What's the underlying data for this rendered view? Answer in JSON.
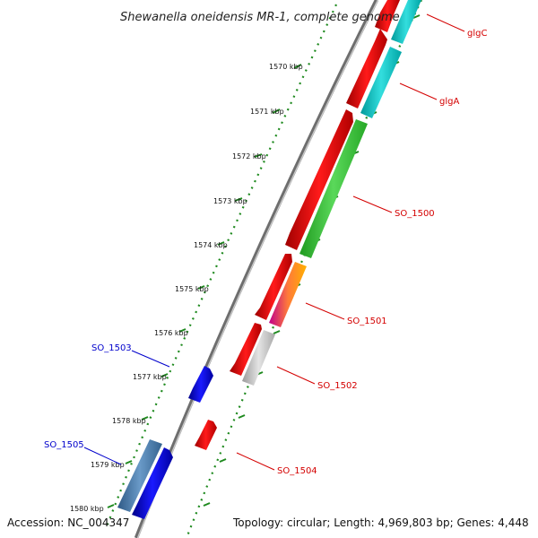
{
  "title": "Shewanella oneidensis MR-1, complete genome",
  "accession": "Accession: NC_004347",
  "topology": "Topology: circular; Length: 4,969,803 bp; Genes: 4,448",
  "colors": {
    "backbone": "#8a8a8a",
    "tick_mark": "#1f8a1f",
    "forward_label": "#d40000",
    "reverse_label": "#0000cc"
  },
  "ticks": [
    "1570 kbp",
    "1571 kbp",
    "1572 kbp",
    "1573 kbp",
    "1574 kbp",
    "1575 kbp",
    "1576 kbp",
    "1577 kbp",
    "1578 kbp",
    "1579 kbp",
    "1580 kbp"
  ],
  "genes": [
    {
      "name": "glgC",
      "strand": "forward",
      "color": "red"
    },
    {
      "name": "glgA",
      "strand": "forward",
      "color": "red"
    },
    {
      "name": "SO_1500",
      "strand": "forward",
      "color": "red"
    },
    {
      "name": "SO_1501",
      "strand": "forward",
      "color": "red"
    },
    {
      "name": "SO_1502",
      "strand": "forward",
      "color": "red"
    },
    {
      "name": "SO_1503",
      "strand": "reverse",
      "color": "blue"
    },
    {
      "name": "SO_1504",
      "strand": "forward",
      "color": "red"
    },
    {
      "name": "SO_1505",
      "strand": "reverse",
      "color": "blue"
    }
  ],
  "features": [
    {
      "gene": "glgC",
      "type": "cog",
      "color": "cyan"
    },
    {
      "gene": "glgA",
      "type": "cog",
      "color": "cyan"
    },
    {
      "gene": "SO_1500",
      "type": "cog",
      "color": "green"
    },
    {
      "gene": "SO_1501",
      "type": "cog",
      "color": "magenta-orange"
    },
    {
      "gene": "SO_1502",
      "type": "cog",
      "color": "gray"
    },
    {
      "gene": "SO_1505",
      "type": "cog",
      "color": "steelblue"
    }
  ]
}
